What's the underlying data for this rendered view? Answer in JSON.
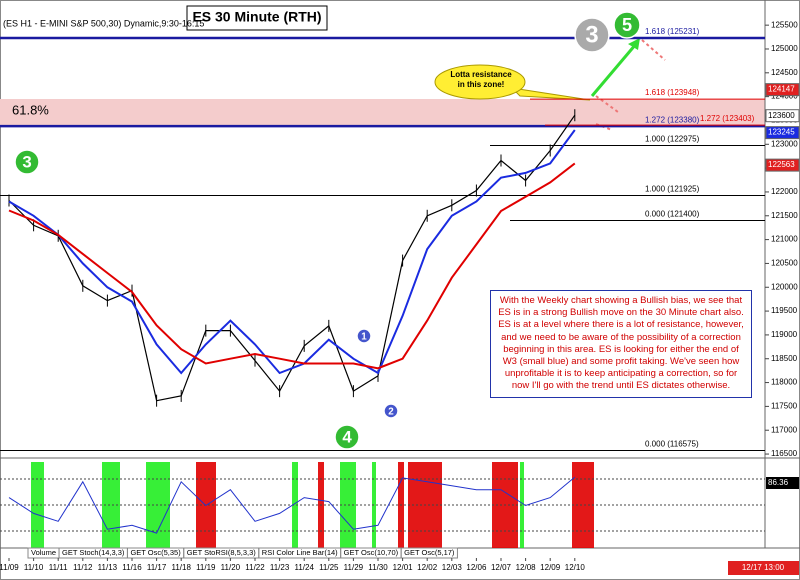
{
  "chart_data": {
    "type": "line",
    "title": "ES 30 Minute (RTH)",
    "header": "(ES H1 - E-MINI S&P 500,30) Dynamic,9:30-16:15",
    "categories": [
      "11/09",
      "11/10",
      "11/11",
      "11/12",
      "11/13",
      "11/16",
      "11/17",
      "11/18",
      "11/19",
      "11/20",
      "11/22",
      "11/23",
      "11/24",
      "11/25",
      "11/29",
      "11/30",
      "12/01",
      "12/02",
      "12/03",
      "12/06",
      "12/07",
      "12/08",
      "12/09",
      "12/10"
    ],
    "series": [
      {
        "color": "#000000",
        "values": [
          121820,
          121300,
          121080,
          120030,
          119720,
          119930,
          117620,
          117720,
          119090,
          119090,
          118460,
          117820,
          118770,
          119190,
          117820,
          118140,
          120560,
          121500,
          121720,
          122030,
          122660,
          122240,
          122870,
          123610
        ]
      },
      {
        "color": "#1a2be0",
        "values": [
          121800,
          121500,
          121100,
          120500,
          120000,
          119700,
          118800,
          118200,
          118800,
          119300,
          118800,
          118200,
          118400,
          118900,
          118500,
          118200,
          119400,
          120800,
          121500,
          121800,
          122300,
          122400,
          122600,
          123300
        ]
      },
      {
        "color": "#e00000",
        "values": [
          121610,
          121400,
          121100,
          120700,
          120300,
          119900,
          119200,
          118700,
          118400,
          118500,
          118600,
          118500,
          118400,
          118400,
          118400,
          118300,
          118500,
          119300,
          120200,
          120900,
          121600,
          121900,
          122200,
          122600
        ]
      }
    ],
    "ylim": [
      116480,
      125860
    ],
    "yticks": [
      116500,
      117000,
      117500,
      118000,
      118500,
      119000,
      119500,
      120000,
      120500,
      121000,
      121500,
      122000,
      122500,
      123000,
      123500,
      124000,
      124500,
      125000,
      125500
    ],
    "levels": [
      {
        "label": "1.618 (125231)",
        "value": 125231,
        "color": "#1a1aa0"
      },
      {
        "label": "1.618 (123948)",
        "value": 123948,
        "color": "#e00000"
      },
      {
        "label": "1.272 (123380)",
        "value": 123380,
        "color": "#1a1aa0"
      },
      {
        "label": "1.272 (123403)",
        "value": 123403,
        "color": "#e00000"
      },
      {
        "label": "1.000 (122975)",
        "value": 122975,
        "color": "#000000"
      },
      {
        "label": "1.000 (121925)",
        "value": 121925,
        "color": "#000000"
      },
      {
        "label": "0.000 (121400)",
        "value": 121400,
        "color": "#000000"
      },
      {
        "label": "0.000 (116575)",
        "value": 116575,
        "color": "#000000"
      }
    ],
    "zone_label": "61.8%",
    "price_tags": [
      {
        "value": 124147,
        "color": "#e02020"
      },
      {
        "value": 123600,
        "color": "#ffffff"
      },
      {
        "value": 123245,
        "color": "#1a2be0"
      },
      {
        "value": 122563,
        "color": "#e02020"
      }
    ],
    "callout": "Lotta resistance in this zone!",
    "note": "With the Weekly chart showing a Bullish bias, we see that ES is in a strong Bullish move on the 30 Minute chart also. ES is at a level where there is a lot of resistance, however, and we need to be aware of the possibility of a correction beginning in this area. ES is looking for either the end of W3 (small blue) and some profit taking. We've seen how unprofitable it is to keep anticipating a correction, so for now I'll go with the trend until ES dictates otherwise.",
    "wave_labels": [
      "3",
      "3",
      "5",
      "4",
      "1",
      "2"
    ],
    "oscillator": {
      "values": [
        60,
        40,
        30,
        80,
        20,
        25,
        15,
        80,
        50,
        70,
        30,
        40,
        60,
        55,
        20,
        25,
        85,
        80,
        75,
        70,
        70,
        50,
        60,
        86
      ],
      "ylim": [
        0,
        100
      ],
      "last": "86.36"
    },
    "tabs": [
      "Volume",
      "GET Stoch(14,3,3)",
      "GET Osc(5,35)",
      "GET StoRSI(8,5,3,3)",
      "RSI Color Line Bar(14)",
      "GET Osc(10,70)",
      "GET Osc(5,17)"
    ],
    "timestamp": "12/17 13:00"
  }
}
